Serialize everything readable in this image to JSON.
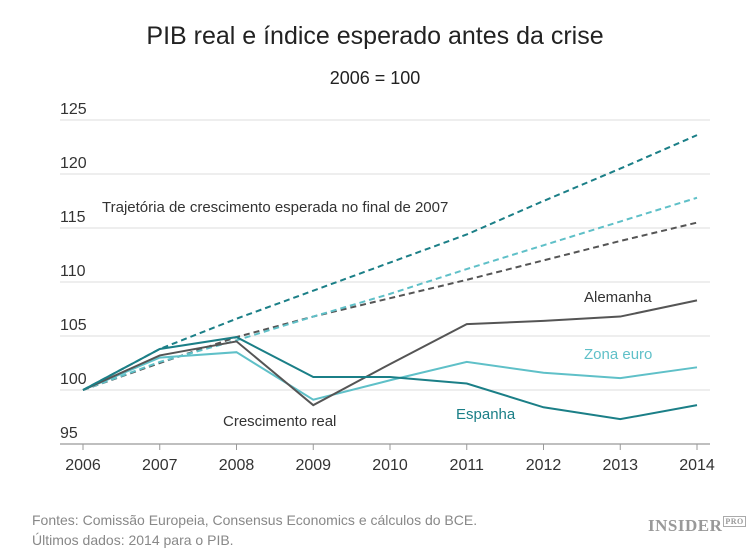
{
  "chart_data": {
    "type": "line",
    "title": "PIB real e índice esperado antes da crise",
    "subtitle": "2006 = 100",
    "x": [
      2006,
      2007,
      2008,
      2009,
      2010,
      2011,
      2012,
      2013,
      2014
    ],
    "ylim": [
      95,
      125
    ],
    "yticks": [
      95,
      100,
      105,
      110,
      115,
      120,
      125
    ],
    "grid": true,
    "series": [
      {
        "name": "Espanha",
        "kind": "real",
        "color": "#1b7f87",
        "values": [
          100,
          103.8,
          104.9,
          101.2,
          101.2,
          100.6,
          98.4,
          97.3,
          98.6
        ]
      },
      {
        "name": "Alemanha",
        "kind": "real",
        "color": "#555555",
        "values": [
          100,
          103.2,
          104.5,
          98.6,
          102.4,
          106.1,
          106.4,
          106.8,
          108.3
        ]
      },
      {
        "name": "Zona euro",
        "kind": "real",
        "color": "#5fc0c8",
        "values": [
          100,
          103.0,
          103.5,
          99.1,
          100.9,
          102.6,
          101.6,
          101.1,
          102.1
        ]
      },
      {
        "kind": "expected",
        "color": "#1b7f87",
        "values": [
          100,
          103.8,
          106.6,
          109.2,
          111.8,
          114.4,
          117.5,
          120.5,
          123.6
        ]
      },
      {
        "kind": "expected",
        "color": "#5fc0c8",
        "values": [
          100,
          102.6,
          104.6,
          106.8,
          108.9,
          111.2,
          113.4,
          115.6,
          117.8
        ]
      },
      {
        "kind": "expected",
        "color": "#555555",
        "values": [
          100,
          102.5,
          104.9,
          106.8,
          108.5,
          110.2,
          112.0,
          113.8,
          115.5
        ]
      }
    ],
    "annotations": {
      "expected": "Trajetória de crescimento esperada no final de 2007",
      "real": "Crescimento real"
    }
  },
  "footer": {
    "source": "Fontes: Comissão Europeia, Consensus Economics e cálculos do BCE.",
    "note": "Últimos dados: 2014 para o PIB.",
    "logo": "INSIDER PRO"
  }
}
